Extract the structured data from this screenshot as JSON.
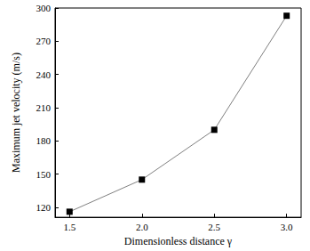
{
  "chart_data": {
    "type": "line",
    "x_label": "Dimensionless distance γ",
    "y_label": "Maximum jet velocity (m/s)",
    "x": [
      1.5,
      2.0,
      2.5,
      3.0
    ],
    "values": [
      116,
      145,
      190,
      293
    ],
    "color": "#000000",
    "marker": "square",
    "line_style": "solid",
    "xlim": [
      1.4,
      3.1
    ],
    "xticks": [
      1.5,
      {
        "value": 2.0,
        "label": "2.0"
      },
      2.5,
      {
        "value": 3.0,
        "label": "3.0"
      }
    ],
    "ylim": [
      111,
      300
    ],
    "yticks": [
      120,
      150,
      180,
      210,
      240,
      270,
      300
    ],
    "grid": false
  }
}
